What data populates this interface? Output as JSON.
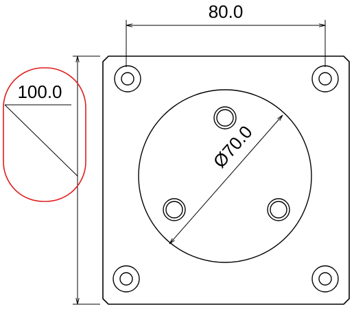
{
  "drawing": {
    "dimensions": {
      "top_spacing": "80.0",
      "left_height": "100.0",
      "circle_diameter": "Ø70.0"
    },
    "colors": {
      "line": "#000000",
      "highlight": "#e01b1b",
      "background": "#ffffff"
    }
  }
}
